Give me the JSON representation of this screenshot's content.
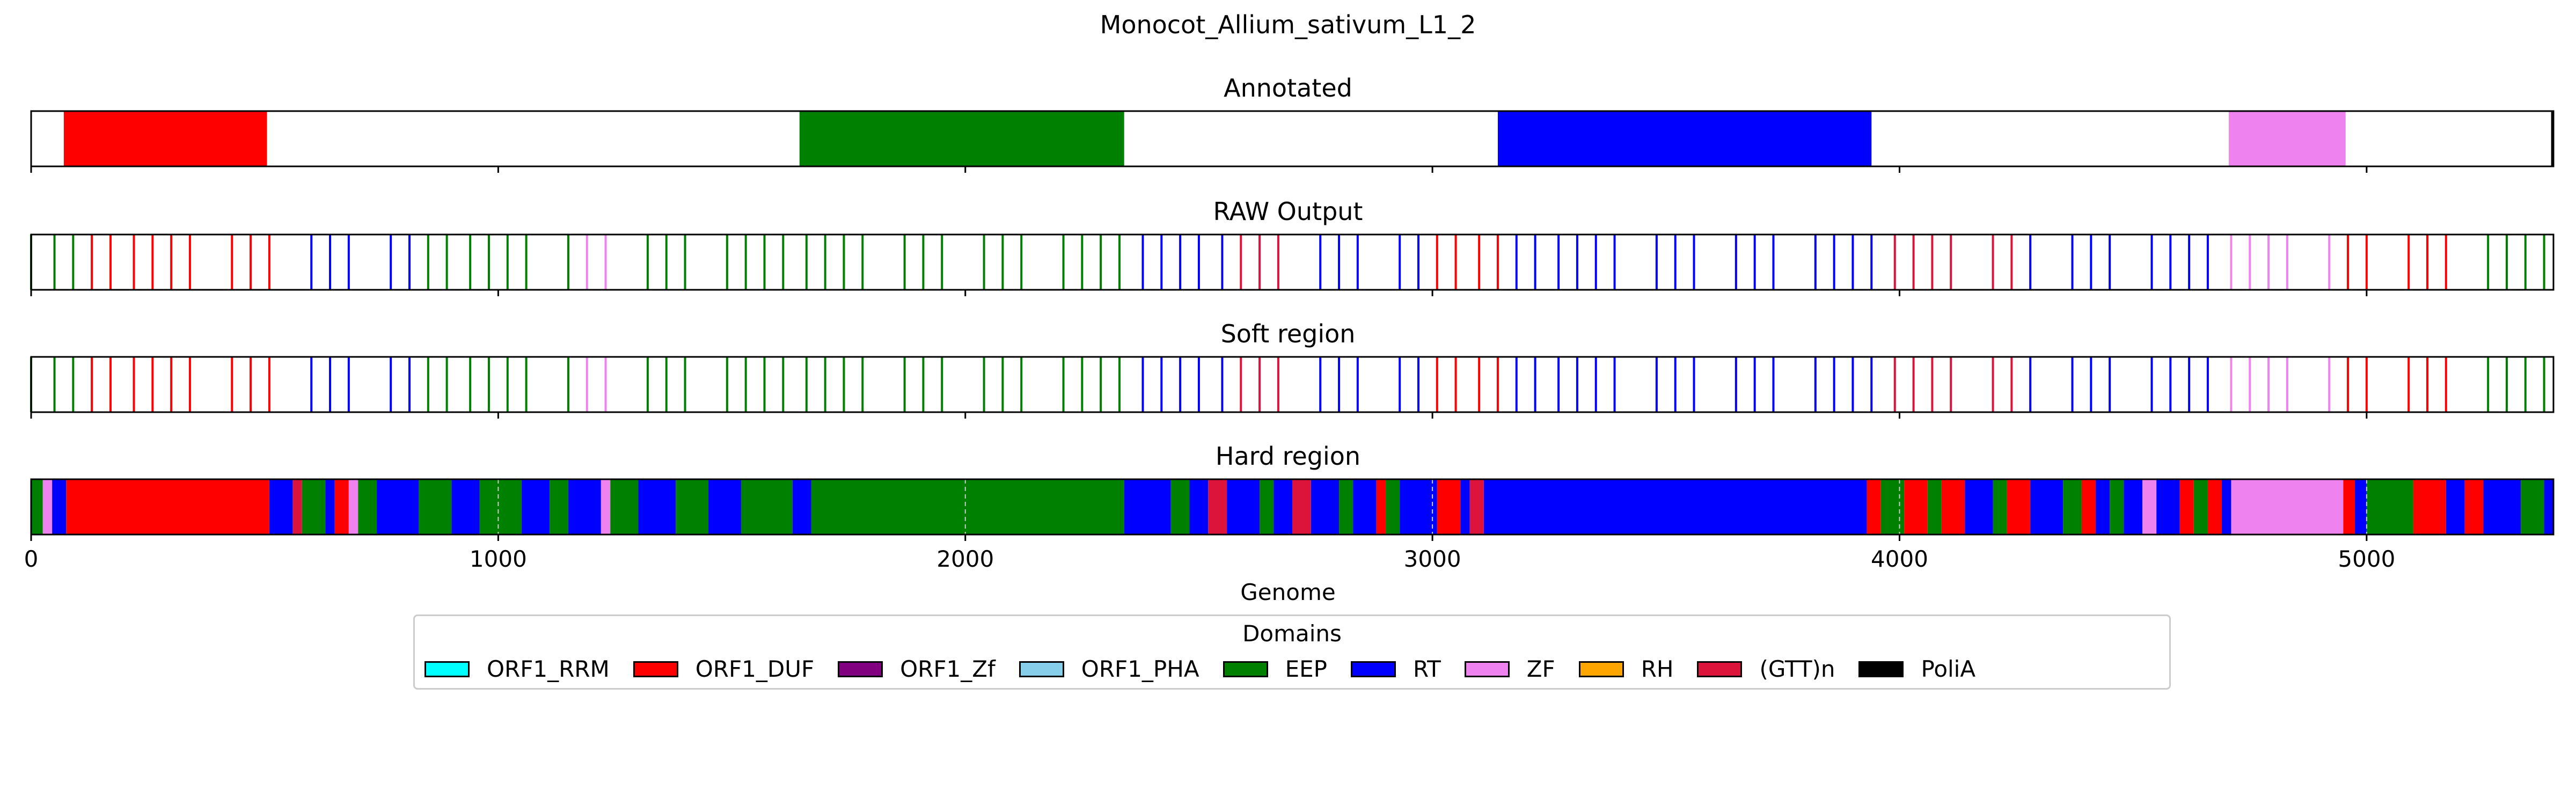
{
  "chart_data": {
    "type": "track",
    "title": "Monocot_Allium_sativum_L1_2",
    "xlabel": "Genome",
    "xlim": [
      0,
      5400
    ],
    "xticks": [
      0,
      1000,
      2000,
      3000,
      4000,
      5000
    ],
    "legend": {
      "title": "Domains",
      "placement": "bottom-center",
      "entries": [
        {
          "name": "ORF1_RRM",
          "color": "#00ffff"
        },
        {
          "name": "ORF1_DUF",
          "color": "#ff0000"
        },
        {
          "name": "ORF1_Zf",
          "color": "#800080"
        },
        {
          "name": "ORF1_PHA",
          "color": "#87ceeb"
        },
        {
          "name": "EEP",
          "color": "#008000"
        },
        {
          "name": "RT",
          "color": "#0000ff"
        },
        {
          "name": "ZF",
          "color": "#ee82ee"
        },
        {
          "name": "RH",
          "color": "#ffa500"
        },
        {
          "name": "(GTT)n",
          "color": "#dc143c"
        },
        {
          "name": "PoliA",
          "color": "#000000"
        }
      ]
    },
    "panels": [
      {
        "title": "Annotated",
        "style": "blocks",
        "segments": [
          {
            "domain": "ORF1_DUF",
            "start": 70,
            "end": 505
          },
          {
            "domain": "EEP",
            "start": 1645,
            "end": 2340
          },
          {
            "domain": "RT",
            "start": 3140,
            "end": 3940
          },
          {
            "domain": "ZF",
            "start": 4705,
            "end": 4955
          },
          {
            "domain": "PoliA",
            "start": 5395,
            "end": 5400
          }
        ]
      },
      {
        "title": "RAW Output",
        "style": "lines",
        "segments": [
          {
            "domain": "EEP",
            "start": 0,
            "end": 100
          },
          {
            "domain": "ORF1_DUF",
            "start": 100,
            "end": 530
          },
          {
            "domain": "RT",
            "start": 530,
            "end": 820
          },
          {
            "domain": "EEP",
            "start": 820,
            "end": 1170
          },
          {
            "domain": "ZF",
            "start": 1170,
            "end": 1290
          },
          {
            "domain": "EEP",
            "start": 1290,
            "end": 1650
          },
          {
            "domain": "EEP",
            "start": 1650,
            "end": 2340
          },
          {
            "domain": "RT",
            "start": 2340,
            "end": 2580
          },
          {
            "domain": "(GTT)n",
            "start": 2580,
            "end": 2720
          },
          {
            "domain": "RT",
            "start": 2720,
            "end": 3000
          },
          {
            "domain": "ORF1_DUF",
            "start": 3000,
            "end": 3150
          },
          {
            "domain": "RT",
            "start": 3150,
            "end": 3950
          },
          {
            "domain": "(GTT)n",
            "start": 3950,
            "end": 4250
          },
          {
            "domain": "RT",
            "start": 4250,
            "end": 4700
          },
          {
            "domain": "ZF",
            "start": 4700,
            "end": 4950
          },
          {
            "domain": "ORF1_DUF",
            "start": 4950,
            "end": 5250
          },
          {
            "domain": "EEP",
            "start": 5250,
            "end": 5400
          }
        ]
      },
      {
        "title": "Soft region",
        "style": "lines",
        "segments": [
          {
            "domain": "EEP",
            "start": 0,
            "end": 100
          },
          {
            "domain": "ORF1_DUF",
            "start": 100,
            "end": 530
          },
          {
            "domain": "RT",
            "start": 530,
            "end": 820
          },
          {
            "domain": "EEP",
            "start": 820,
            "end": 1170
          },
          {
            "domain": "ZF",
            "start": 1170,
            "end": 1290
          },
          {
            "domain": "EEP",
            "start": 1290,
            "end": 1650
          },
          {
            "domain": "EEP",
            "start": 1650,
            "end": 2340
          },
          {
            "domain": "RT",
            "start": 2340,
            "end": 2580
          },
          {
            "domain": "(GTT)n",
            "start": 2580,
            "end": 2720
          },
          {
            "domain": "RT",
            "start": 2720,
            "end": 3000
          },
          {
            "domain": "ORF1_DUF",
            "start": 3000,
            "end": 3150
          },
          {
            "domain": "RT",
            "start": 3150,
            "end": 3950
          },
          {
            "domain": "(GTT)n",
            "start": 3950,
            "end": 4250
          },
          {
            "domain": "RT",
            "start": 4250,
            "end": 4700
          },
          {
            "domain": "ZF",
            "start": 4700,
            "end": 4950
          },
          {
            "domain": "ORF1_DUF",
            "start": 4950,
            "end": 5250
          },
          {
            "domain": "EEP",
            "start": 5250,
            "end": 5400
          }
        ]
      },
      {
        "title": "Hard region",
        "style": "blocks",
        "segments": [
          {
            "domain": "EEP",
            "start": 0,
            "end": 25
          },
          {
            "domain": "ZF",
            "start": 25,
            "end": 45
          },
          {
            "domain": "RT",
            "start": 45,
            "end": 75
          },
          {
            "domain": "ORF1_DUF",
            "start": 75,
            "end": 510
          },
          {
            "domain": "RT",
            "start": 510,
            "end": 560
          },
          {
            "domain": "(GTT)n",
            "start": 560,
            "end": 580
          },
          {
            "domain": "EEP",
            "start": 580,
            "end": 630
          },
          {
            "domain": "RT",
            "start": 630,
            "end": 650
          },
          {
            "domain": "ORF1_DUF",
            "start": 650,
            "end": 680
          },
          {
            "domain": "ZF",
            "start": 680,
            "end": 700
          },
          {
            "domain": "EEP",
            "start": 700,
            "end": 740
          },
          {
            "domain": "RT",
            "start": 740,
            "end": 830
          },
          {
            "domain": "EEP",
            "start": 830,
            "end": 900
          },
          {
            "domain": "RT",
            "start": 900,
            "end": 960
          },
          {
            "domain": "EEP",
            "start": 960,
            "end": 1050
          },
          {
            "domain": "RT",
            "start": 1050,
            "end": 1110
          },
          {
            "domain": "EEP",
            "start": 1110,
            "end": 1150
          },
          {
            "domain": "RT",
            "start": 1150,
            "end": 1220
          },
          {
            "domain": "ZF",
            "start": 1220,
            "end": 1240
          },
          {
            "domain": "EEP",
            "start": 1240,
            "end": 1300
          },
          {
            "domain": "RT",
            "start": 1300,
            "end": 1380
          },
          {
            "domain": "EEP",
            "start": 1380,
            "end": 1450
          },
          {
            "domain": "RT",
            "start": 1450,
            "end": 1520
          },
          {
            "domain": "EEP",
            "start": 1520,
            "end": 1630
          },
          {
            "domain": "RT",
            "start": 1630,
            "end": 1670
          },
          {
            "domain": "EEP",
            "start": 1670,
            "end": 2340
          },
          {
            "domain": "RT",
            "start": 2340,
            "end": 2440
          },
          {
            "domain": "EEP",
            "start": 2440,
            "end": 2480
          },
          {
            "domain": "RT",
            "start": 2480,
            "end": 2520
          },
          {
            "domain": "(GTT)n",
            "start": 2520,
            "end": 2560
          },
          {
            "domain": "RT",
            "start": 2560,
            "end": 2630
          },
          {
            "domain": "EEP",
            "start": 2630,
            "end": 2660
          },
          {
            "domain": "RT",
            "start": 2660,
            "end": 2700
          },
          {
            "domain": "(GTT)n",
            "start": 2700,
            "end": 2740
          },
          {
            "domain": "RT",
            "start": 2740,
            "end": 2800
          },
          {
            "domain": "EEP",
            "start": 2800,
            "end": 2830
          },
          {
            "domain": "RT",
            "start": 2830,
            "end": 2880
          },
          {
            "domain": "ORF1_DUF",
            "start": 2880,
            "end": 2900
          },
          {
            "domain": "EEP",
            "start": 2900,
            "end": 2930
          },
          {
            "domain": "RT",
            "start": 2930,
            "end": 3010
          },
          {
            "domain": "ORF1_DUF",
            "start": 3010,
            "end": 3060
          },
          {
            "domain": "RT",
            "start": 3060,
            "end": 3080
          },
          {
            "domain": "(GTT)n",
            "start": 3080,
            "end": 3110
          },
          {
            "domain": "RT",
            "start": 3110,
            "end": 3930
          },
          {
            "domain": "ORF1_DUF",
            "start": 3930,
            "end": 3960
          },
          {
            "domain": "EEP",
            "start": 3960,
            "end": 4010
          },
          {
            "domain": "ORF1_DUF",
            "start": 4010,
            "end": 4060
          },
          {
            "domain": "EEP",
            "start": 4060,
            "end": 4090
          },
          {
            "domain": "ORF1_DUF",
            "start": 4090,
            "end": 4140
          },
          {
            "domain": "RT",
            "start": 4140,
            "end": 4200
          },
          {
            "domain": "EEP",
            "start": 4200,
            "end": 4230
          },
          {
            "domain": "ORF1_DUF",
            "start": 4230,
            "end": 4280
          },
          {
            "domain": "RT",
            "start": 4280,
            "end": 4350
          },
          {
            "domain": "EEP",
            "start": 4350,
            "end": 4390
          },
          {
            "domain": "ORF1_DUF",
            "start": 4390,
            "end": 4420
          },
          {
            "domain": "RT",
            "start": 4420,
            "end": 4450
          },
          {
            "domain": "EEP",
            "start": 4450,
            "end": 4480
          },
          {
            "domain": "RT",
            "start": 4480,
            "end": 4520
          },
          {
            "domain": "ZF",
            "start": 4520,
            "end": 4550
          },
          {
            "domain": "RT",
            "start": 4550,
            "end": 4600
          },
          {
            "domain": "ORF1_DUF",
            "start": 4600,
            "end": 4630
          },
          {
            "domain": "EEP",
            "start": 4630,
            "end": 4660
          },
          {
            "domain": "ORF1_DUF",
            "start": 4660,
            "end": 4690
          },
          {
            "domain": "RT",
            "start": 4690,
            "end": 4710
          },
          {
            "domain": "ZF",
            "start": 4710,
            "end": 4950
          },
          {
            "domain": "ORF1_DUF",
            "start": 4950,
            "end": 4975
          },
          {
            "domain": "RT",
            "start": 4975,
            "end": 5000
          },
          {
            "domain": "EEP",
            "start": 5000,
            "end": 5100
          },
          {
            "domain": "ORF1_DUF",
            "start": 5100,
            "end": 5170
          },
          {
            "domain": "RT",
            "start": 5170,
            "end": 5210
          },
          {
            "domain": "ORF1_DUF",
            "start": 5210,
            "end": 5250
          },
          {
            "domain": "RT",
            "start": 5250,
            "end": 5330
          },
          {
            "domain": "EEP",
            "start": 5330,
            "end": 5380
          },
          {
            "domain": "RT",
            "start": 5380,
            "end": 5400
          }
        ]
      }
    ]
  }
}
